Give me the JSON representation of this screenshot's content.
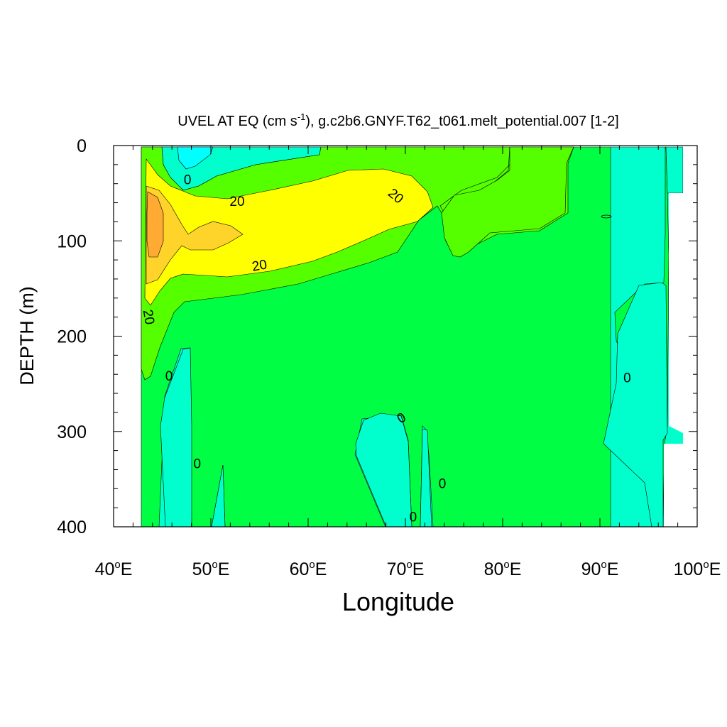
{
  "chart_data": {
    "type": "contour",
    "title": "UVEL AT EQ (cm s-1), g.c2b6.GNYF.T62_t061.melt_potential.007 [1-2]",
    "title_parts": {
      "prefix": "UVEL AT EQ (cm s",
      "superscript": "-1",
      "suffix": "), g.c2b6.GNYF.T62_t061.melt_potential.007 [1-2]"
    },
    "xlabel": "Longitude",
    "ylabel": "DEPTH (m)",
    "xlim": [
      40,
      100
    ],
    "ylim": [
      0,
      400
    ],
    "y_inverted": true,
    "x_major_ticks": [
      {
        "value": 40,
        "num": "40",
        "sup": "o",
        "suffix": "E"
      },
      {
        "value": 50,
        "num": "50",
        "sup": "o",
        "suffix": "E"
      },
      {
        "value": 60,
        "num": "60",
        "sup": "o",
        "suffix": "E"
      },
      {
        "value": 70,
        "num": "70",
        "sup": "o",
        "suffix": "E"
      },
      {
        "value": 80,
        "num": "80",
        "sup": "o",
        "suffix": "E"
      },
      {
        "value": 90,
        "num": "90",
        "sup": "o",
        "suffix": "E"
      },
      {
        "value": 100,
        "num": "100",
        "sup": "o",
        "suffix": "E"
      }
    ],
    "y_major_ticks": [
      {
        "value": 0,
        "label": "0"
      },
      {
        "value": 100,
        "label": "100"
      },
      {
        "value": 200,
        "label": "200"
      },
      {
        "value": 300,
        "label": "300"
      },
      {
        "value": 400,
        "label": "400"
      }
    ],
    "x_minor_step": 2,
    "y_minor_step": 20,
    "levels": [
      {
        "range": "< 0",
        "color": "#00ffff"
      },
      {
        "range": "0 to 10",
        "color": "#00ffcc"
      },
      {
        "range": "10 to 20",
        "color": "#00ff44"
      },
      {
        "range": "20 to 30",
        "color": "#55ff00"
      },
      {
        "range": "30 to 40",
        "color": "#ffff00"
      },
      {
        "range": "40 to 50",
        "color": "#ffd42a"
      },
      {
        "range": "> 50",
        "color": "#ffaa33"
      }
    ],
    "contour_labels": [
      {
        "text": "0",
        "lon": 47.6,
        "depth": 36,
        "angle": 0
      },
      {
        "text": "20",
        "lon": 52.7,
        "depth": 59,
        "angle": 0
      },
      {
        "text": "20",
        "lon": 69.0,
        "depth": 53,
        "angle": 40
      },
      {
        "text": "20",
        "lon": 55.0,
        "depth": 126,
        "angle": -10
      },
      {
        "text": "20",
        "lon": 43.6,
        "depth": 180,
        "angle": 80
      },
      {
        "text": "0",
        "lon": 45.7,
        "depth": 242,
        "angle": 0
      },
      {
        "text": "0",
        "lon": 48.6,
        "depth": 334,
        "angle": 0
      },
      {
        "text": "0",
        "lon": 69.6,
        "depth": 286,
        "angle": -30
      },
      {
        "text": "0",
        "lon": 73.8,
        "depth": 355,
        "angle": 0
      },
      {
        "text": "0",
        "lon": 70.8,
        "depth": 390,
        "angle": 0
      },
      {
        "text": "0",
        "lon": 92.8,
        "depth": 244,
        "angle": 0
      }
    ]
  }
}
